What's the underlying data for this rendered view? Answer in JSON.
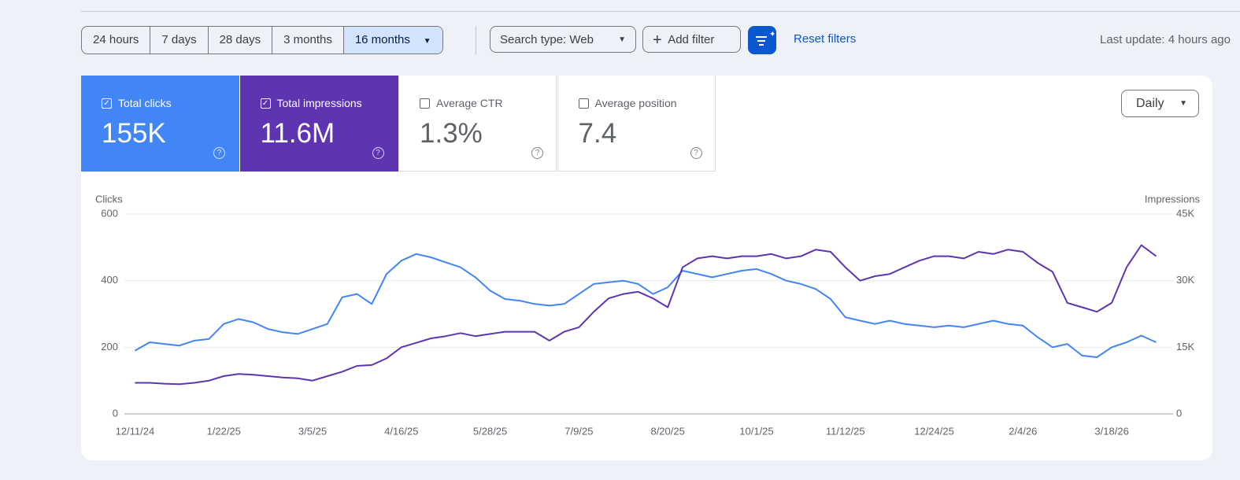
{
  "toolbar": {
    "ranges": [
      "24 hours",
      "7 days",
      "28 days",
      "3 months",
      "16 months"
    ],
    "selected": 4,
    "search_type": "Search type: Web",
    "add_filter": "Add filter",
    "reset": "Reset filters",
    "last_update": "Last update: 4 hours ago"
  },
  "metrics": [
    {
      "label": "Total clicks",
      "value": "155K",
      "checked": true,
      "color": "#4285f4"
    },
    {
      "label": "Total impressions",
      "value": "11.6M",
      "checked": true,
      "color": "#5e35b1"
    },
    {
      "label": "Average CTR",
      "value": "1.3%",
      "checked": false
    },
    {
      "label": "Average position",
      "value": "7.4",
      "checked": false
    }
  ],
  "granularity": "Daily",
  "chart_data": {
    "type": "line",
    "y_label": "Clicks",
    "y2_label": "Impressions",
    "x": [
      "12/11/24",
      "12/18/24",
      "12/25/24",
      "1/1/25",
      "1/8/25",
      "1/15/25",
      "1/22/25",
      "1/29/25",
      "2/5/25",
      "2/12/25",
      "2/19/25",
      "2/26/25",
      "3/5/25",
      "3/12/25",
      "3/19/25",
      "3/26/25",
      "4/2/25",
      "4/9/25",
      "4/16/25",
      "4/23/25",
      "4/30/25",
      "5/7/25",
      "5/14/25",
      "5/21/25",
      "5/28/25",
      "6/4/25",
      "6/11/25",
      "6/18/25",
      "6/25/25",
      "7/2/25",
      "7/9/25",
      "7/16/25",
      "7/23/25",
      "7/30/25",
      "8/6/25",
      "8/13/25",
      "8/20/25",
      "8/27/25",
      "9/3/25",
      "9/10/25",
      "9/17/25",
      "9/24/25",
      "10/1/25",
      "10/8/25",
      "10/15/25",
      "10/22/25",
      "10/29/25",
      "11/5/25",
      "11/12/25",
      "11/19/25",
      "11/26/25",
      "12/3/25",
      "12/10/25",
      "12/17/25",
      "12/24/25",
      "12/31/25",
      "1/7/26",
      "1/14/26",
      "1/21/26",
      "1/28/26",
      "2/4/26",
      "2/11/26",
      "2/18/26",
      "2/25/26",
      "3/4/26",
      "3/11/26",
      "3/18/26",
      "3/25/26",
      "4/1/26",
      "4/8/26"
    ],
    "xlim": [
      "12/6/24",
      "4/16/26"
    ],
    "xticks": [
      "12/11/24",
      "1/22/25",
      "3/5/25",
      "4/16/25",
      "5/28/25",
      "7/9/25",
      "8/20/25",
      "10/1/25",
      "11/12/25",
      "12/24/25",
      "2/4/26",
      "3/18/26"
    ],
    "ylim": [
      0,
      600
    ],
    "yticks": [
      0,
      200,
      400,
      600
    ],
    "y2lim": [
      0,
      45000
    ],
    "y2ticks": [
      0,
      {
        "value": 15000,
        "label": "15K"
      },
      {
        "value": 30000,
        "label": "30K"
      },
      {
        "value": 45000,
        "label": "45K"
      }
    ],
    "grid": true,
    "series": [
      {
        "color": "#4285f4",
        "axis": "y",
        "values": [
          190,
          215,
          210,
          205,
          220,
          225,
          270,
          285,
          275,
          255,
          245,
          240,
          255,
          270,
          350,
          360,
          330,
          420,
          460,
          480,
          470,
          455,
          440,
          410,
          370,
          345,
          340,
          330,
          325,
          330,
          360,
          390,
          395,
          400,
          390,
          360,
          380,
          430,
          420,
          410,
          420,
          430,
          435,
          420,
          400,
          390,
          375,
          345,
          290,
          280,
          270,
          280,
          270,
          265,
          260,
          265,
          260,
          270,
          280,
          270,
          265,
          230,
          200,
          210,
          175,
          170,
          200,
          215,
          235,
          215
        ]
      },
      {
        "color": "#5e35b1",
        "axis": "y2",
        "values": [
          7000,
          7000,
          6800,
          6700,
          7000,
          7500,
          8500,
          9000,
          8800,
          8500,
          8200,
          8000,
          7500,
          8500,
          9500,
          10800,
          11000,
          12500,
          15000,
          16000,
          17000,
          17500,
          18200,
          17500,
          18000,
          18500,
          18500,
          18500,
          16500,
          18500,
          19500,
          23000,
          26000,
          27000,
          27500,
          26000,
          24000,
          33000,
          35000,
          35500,
          35000,
          35500,
          35500,
          36000,
          35000,
          35500,
          37000,
          36500,
          33000,
          30000,
          31000,
          31500,
          33000,
          34500,
          35500,
          35500,
          35000,
          36500,
          36000,
          37000,
          36500,
          34000,
          32000,
          25000,
          24000,
          23000,
          25000,
          33000,
          38000,
          35500
        ]
      }
    ]
  }
}
